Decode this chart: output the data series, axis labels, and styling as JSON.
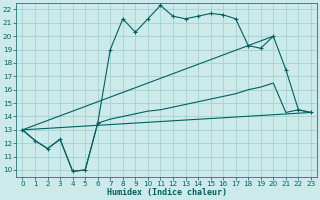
{
  "xlabel": "Humidex (Indice chaleur)",
  "bg_color": "#cceaea",
  "grid_color": "#aad4d4",
  "line_color": "#006060",
  "xlim": [
    -0.5,
    23.5
  ],
  "ylim": [
    9.5,
    22.5
  ],
  "xticks": [
    0,
    1,
    2,
    3,
    4,
    5,
    6,
    7,
    8,
    9,
    10,
    11,
    12,
    13,
    14,
    15,
    16,
    17,
    18,
    19,
    20,
    21,
    22,
    23
  ],
  "yticks": [
    10,
    11,
    12,
    13,
    14,
    15,
    16,
    17,
    18,
    19,
    20,
    21,
    22
  ],
  "line1_x": [
    0,
    1,
    2,
    3,
    4,
    5,
    6,
    7,
    8,
    9,
    10,
    11,
    12,
    13,
    14,
    15,
    16,
    17,
    18,
    19,
    20,
    21,
    22,
    23
  ],
  "line1_y": [
    13.0,
    12.2,
    11.6,
    12.3,
    9.9,
    10.0,
    13.5,
    19.0,
    21.3,
    20.3,
    21.3,
    22.3,
    21.5,
    21.3,
    21.5,
    21.7,
    21.6,
    21.3,
    19.3,
    19.1,
    20.0,
    17.5,
    14.5,
    14.3
  ],
  "line2_x": [
    0,
    1,
    2,
    3,
    4,
    5,
    6,
    7,
    8,
    9,
    10,
    11,
    12,
    13,
    14,
    15,
    16,
    17,
    18,
    19,
    20,
    21,
    22,
    23
  ],
  "line2_y": [
    13.0,
    12.2,
    11.6,
    12.3,
    9.9,
    10.0,
    13.5,
    13.8,
    14.0,
    14.2,
    14.4,
    14.5,
    14.7,
    14.9,
    15.1,
    15.3,
    15.5,
    15.7,
    16.0,
    16.2,
    16.5,
    14.3,
    14.5,
    14.3
  ],
  "line3_x": [
    0,
    20
  ],
  "line3_y": [
    13.0,
    20.0
  ],
  "line4_x": [
    0,
    23
  ],
  "line4_y": [
    13.0,
    14.3
  ]
}
